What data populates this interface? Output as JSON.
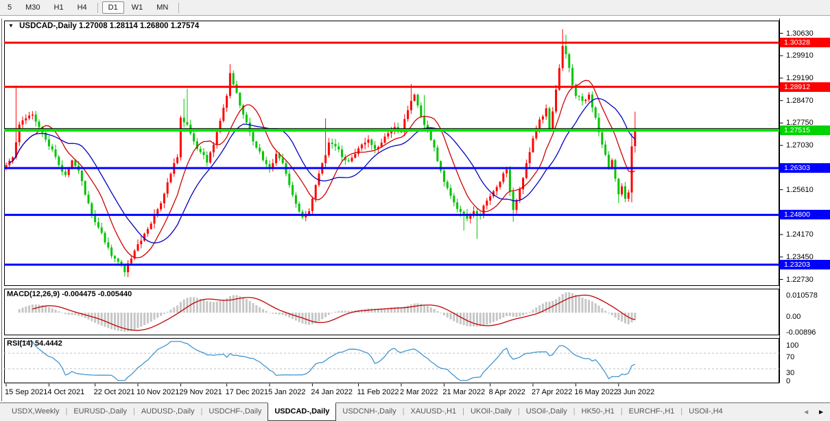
{
  "toolbar": {
    "items": [
      {
        "label": "5"
      },
      {
        "label": "M30"
      },
      {
        "label": "H1"
      },
      {
        "label": "H4"
      },
      {
        "sep": true
      },
      {
        "label": "D1",
        "active": true
      },
      {
        "label": "W1"
      },
      {
        "label": "MN"
      },
      {
        "sep": true
      }
    ]
  },
  "icons": {
    "chart_menu": "▼",
    "tab_prev": "◄",
    "tab_next": "►"
  },
  "chart": {
    "title": "USDCAD-,Daily",
    "ohlc": "1.27008 1.28114 1.26800 1.27574",
    "price_axis": {
      "ticks": [
        "1.30630",
        "1.29910",
        "1.29190",
        "1.28470",
        "1.27750",
        "1.27030",
        "1.25610",
        "1.24170",
        "1.23450",
        "1.22730"
      ],
      "badges": [
        {
          "label": "1.30328",
          "price": 1.30328,
          "color": "#ff0000"
        },
        {
          "label": "1.28912",
          "price": 1.28912,
          "color": "#ff0000"
        },
        {
          "label": "1.27515",
          "price": 1.27515,
          "color": "#00d300"
        },
        {
          "label": "1.26303",
          "price": 1.26303,
          "color": "#0000ff"
        },
        {
          "label": "1.24800",
          "price": 1.248,
          "color": "#0000ff"
        },
        {
          "label": "1.23203",
          "price": 1.23203,
          "color": "#0000ff"
        }
      ]
    },
    "dates": [
      {
        "label": "15 Sep 2021",
        "bar": 0
      },
      {
        "label": "4 Oct 2021",
        "bar": 13
      },
      {
        "label": "22 Oct 2021",
        "bar": 27
      },
      {
        "label": "10 Nov 2021",
        "bar": 40
      },
      {
        "label": "29 Nov 2021",
        "bar": 53
      },
      {
        "label": "17 Dec 2021",
        "bar": 67
      },
      {
        "label": "5 Jan 2022",
        "bar": 80
      },
      {
        "label": "24 Jan 2022",
        "bar": 93
      },
      {
        "label": "11 Feb 2022",
        "bar": 107
      },
      {
        "label": "2 Mar 2022",
        "bar": 120
      },
      {
        "label": "21 Mar 2022",
        "bar": 133
      },
      {
        "label": "8 Apr 2022",
        "bar": 147
      },
      {
        "label": "27 Apr 2022",
        "bar": 160
      },
      {
        "label": "16 May 2022",
        "bar": 173
      },
      {
        "label": "3 Jun 2022",
        "bar": 186
      }
    ]
  },
  "macd": {
    "label": "MACD(12,26,9)",
    "values": "-0.004475 -0.005440",
    "axis": [
      {
        "label": "0.010578",
        "value": 0.010578
      },
      {
        "label": "0.00",
        "value": 0
      },
      {
        "label": "-0.00896",
        "value": -0.00896
      }
    ],
    "hist_color": "#c6c6c6",
    "signal_color": "#c00000"
  },
  "rsi": {
    "label": "RSI(14)",
    "value": "54.4442",
    "axis": [
      {
        "label": "100",
        "value": 100
      },
      {
        "label": "70",
        "value": 70
      },
      {
        "label": "30",
        "value": 30
      },
      {
        "label": "0",
        "value": 0
      }
    ],
    "levels": [
      70,
      30
    ],
    "line_color": "#3f95d0",
    "level_color": "#bdbdbd"
  },
  "tabs": {
    "items": [
      {
        "label": "USDX,Weekly"
      },
      {
        "label": "EURUSD-,Daily"
      },
      {
        "label": "AUDUSD-,Daily"
      },
      {
        "label": "USDCHF-,Daily"
      },
      {
        "label": "USDCAD-,Daily",
        "active": true
      },
      {
        "label": "USDCNH-,Daily"
      },
      {
        "label": "XAUUSD-,H1"
      },
      {
        "label": "UKOil-,Daily"
      },
      {
        "label": "USOil-,Daily"
      },
      {
        "label": "HK50-,H1"
      },
      {
        "label": "EURCHF-,H1"
      },
      {
        "label": "USOil-,H4"
      }
    ]
  },
  "chart_data": {
    "type": "candlestick",
    "symbol": "USDCAD-",
    "timeframe": "Daily",
    "current": {
      "open": 1.27008,
      "high": 1.28114,
      "low": 1.268,
      "close": 1.27574,
      "bid": 1.27515
    },
    "bull_color": "#ff0000",
    "bear_color": "#00c300",
    "bars_total": 192,
    "price_range": [
      1.2252,
      1.3104
    ],
    "levels": [
      {
        "price": 1.30328,
        "color": "#ff0000",
        "width": 3
      },
      {
        "price": 1.28912,
        "color": "#ff0000",
        "width": 3
      },
      {
        "price": 1.27515,
        "color": "#00e600",
        "width": 4
      },
      {
        "price": 1.26303,
        "color": "#0000ff",
        "width": 3
      },
      {
        "price": 1.248,
        "color": "#0000ff",
        "width": 3
      },
      {
        "price": 1.23203,
        "color": "#0000ff",
        "width": 3
      }
    ],
    "close_line": {
      "price": 1.27574,
      "color": "#000000",
      "width": 1
    },
    "ma": [
      {
        "period": 10,
        "color": "#cc0000"
      },
      {
        "period": 20,
        "color": "#0000bb"
      }
    ],
    "macd_params": [
      12,
      26,
      9
    ],
    "rsi_period": 14,
    "close_anchors": [
      [
        0,
        1.264
      ],
      [
        2,
        1.2665
      ],
      [
        4,
        1.277
      ],
      [
        6,
        1.279
      ],
      [
        8,
        1.2802
      ],
      [
        10,
        1.2762
      ],
      [
        12,
        1.2722
      ],
      [
        14,
        1.269
      ],
      [
        16,
        1.264
      ],
      [
        18,
        1.2608
      ],
      [
        20,
        1.2655
      ],
      [
        22,
        1.2622
      ],
      [
        24,
        1.2545
      ],
      [
        26,
        1.248
      ],
      [
        28,
        1.244
      ],
      [
        30,
        1.2392
      ],
      [
        32,
        1.2348
      ],
      [
        34,
        1.233
      ],
      [
        36,
        1.2296
      ],
      [
        38,
        1.234
      ],
      [
        40,
        1.2386
      ],
      [
        42,
        1.242
      ],
      [
        44,
        1.2452
      ],
      [
        46,
        1.2498
      ],
      [
        48,
        1.2548
      ],
      [
        50,
        1.2612
      ],
      [
        52,
        1.2665
      ],
      [
        53,
        1.2792
      ],
      [
        55,
        1.277
      ],
      [
        57,
        1.2716
      ],
      [
        59,
        1.2682
      ],
      [
        61,
        1.2648
      ],
      [
        63,
        1.2705
      ],
      [
        65,
        1.2782
      ],
      [
        67,
        1.2862
      ],
      [
        68,
        1.2935
      ],
      [
        70,
        1.2872
      ],
      [
        72,
        1.2802
      ],
      [
        74,
        1.2746
      ],
      [
        76,
        1.2696
      ],
      [
        78,
        1.2656
      ],
      [
        80,
        1.263
      ],
      [
        82,
        1.2676
      ],
      [
        84,
        1.2646
      ],
      [
        86,
        1.2576
      ],
      [
        88,
        1.2516
      ],
      [
        90,
        1.2472
      ],
      [
        92,
        1.2492
      ],
      [
        94,
        1.2576
      ],
      [
        96,
        1.2646
      ],
      [
        98,
        1.2712
      ],
      [
        100,
        1.27
      ],
      [
        102,
        1.2666
      ],
      [
        104,
        1.2652
      ],
      [
        106,
        1.2676
      ],
      [
        108,
        1.2706
      ],
      [
        110,
        1.2722
      ],
      [
        112,
        1.2692
      ],
      [
        114,
        1.2712
      ],
      [
        116,
        1.2742
      ],
      [
        118,
        1.2762
      ],
      [
        120,
        1.2746
      ],
      [
        122,
        1.2816
      ],
      [
        124,
        1.2866
      ],
      [
        126,
        1.2796
      ],
      [
        128,
        1.2752
      ],
      [
        130,
        1.2696
      ],
      [
        132,
        1.2622
      ],
      [
        134,
        1.2566
      ],
      [
        136,
        1.252
      ],
      [
        138,
        1.249
      ],
      [
        140,
        1.2468
      ],
      [
        142,
        1.2492
      ],
      [
        144,
        1.2478
      ],
      [
        146,
        1.2526
      ],
      [
        148,
        1.2556
      ],
      [
        150,
        1.2586
      ],
      [
        152,
        1.2626
      ],
      [
        154,
        1.2496
      ],
      [
        156,
        1.2562
      ],
      [
        158,
        1.2646
      ],
      [
        160,
        1.2726
      ],
      [
        162,
        1.2786
      ],
      [
        164,
        1.2822
      ],
      [
        165,
        1.2756
      ],
      [
        167,
        1.2882
      ],
      [
        169,
        1.3022
      ],
      [
        170,
        1.2996
      ],
      [
        171,
        1.2952
      ],
      [
        172,
        1.2896
      ],
      [
        173,
        1.2862
      ],
      [
        175,
        1.2846
      ],
      [
        177,
        1.2866
      ],
      [
        179,
        1.2792
      ],
      [
        181,
        1.2706
      ],
      [
        183,
        1.2632
      ],
      [
        184,
        1.2656
      ],
      [
        185,
        1.2596
      ],
      [
        186,
        1.2546
      ],
      [
        187,
        1.2572
      ],
      [
        188,
        1.2532
      ],
      [
        189,
        1.2552
      ],
      [
        190,
        1.27
      ],
      [
        191,
        1.27574
      ]
    ],
    "wick_overrides": {
      "3": {
        "h": 1.2895
      },
      "54": {
        "h": 1.2853
      },
      "55": {
        "h": 1.2885
      },
      "68": {
        "h": 1.2964
      },
      "97": {
        "h": 1.279
      },
      "123": {
        "h": 1.29
      },
      "127": {
        "h": 1.2865
      },
      "139": {
        "l": 1.243
      },
      "143": {
        "l": 1.2403
      },
      "154": {
        "l": 1.2458
      },
      "169": {
        "h": 1.3076
      },
      "170": {
        "h": 1.3058
      },
      "186": {
        "l": 1.2518
      },
      "190": {
        "h": 1.2742,
        "l": 1.252
      }
    },
    "last_bar": {
      "o": 1.27008,
      "h": 1.28114,
      "l": 1.268,
      "c": 1.27574
    }
  }
}
